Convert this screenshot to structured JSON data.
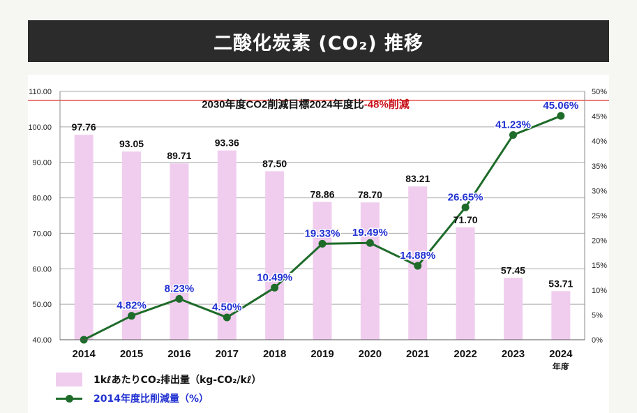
{
  "title": "二酸化炭素 (CO₂) 推移",
  "chart_data": {
    "type": "bar+line",
    "categories": [
      "2014",
      "2015",
      "2016",
      "2017",
      "2018",
      "2019",
      "2020",
      "2021",
      "2022",
      "2023",
      "2024"
    ],
    "x_unit": "年度",
    "left_axis": {
      "ylim": [
        40,
        110
      ],
      "ticks": [
        "40.00",
        "50.00",
        "60.00",
        "70.00",
        "80.00",
        "90.00",
        "100.00",
        "110.00"
      ]
    },
    "right_axis": {
      "ylim": [
        0,
        50
      ],
      "ticks": [
        "0%",
        "5%",
        "10%",
        "15%",
        "20%",
        "25%",
        "30%",
        "35%",
        "40%",
        "45%",
        "50%"
      ]
    },
    "series": [
      {
        "name": "1kℓあたりCO₂排出量（kg-CO₂/kℓ）",
        "kind": "bar",
        "axis": "left",
        "color": "#f0cdee",
        "values": [
          97.76,
          93.05,
          89.71,
          93.36,
          87.5,
          78.86,
          78.7,
          83.21,
          71.7,
          57.45,
          53.71
        ],
        "labels": [
          "97.76",
          "93.05",
          "89.71",
          "93.36",
          "87.50",
          "78.86",
          "78.70",
          "83.21",
          "71.70",
          "57.45",
          "53.71"
        ]
      },
      {
        "name": "2014年度比削減量（%）",
        "kind": "line",
        "axis": "right",
        "color": "#1e6b2a",
        "label_color": "#1f2fd1",
        "values": [
          0,
          4.82,
          8.23,
          4.5,
          10.49,
          19.33,
          19.49,
          14.88,
          26.65,
          41.23,
          45.06
        ],
        "labels": [
          "",
          "4.82%",
          "8.23%",
          "4.50%",
          "10.49%",
          "19.33%",
          "19.49%",
          "14.88%",
          "26.65%",
          "41.23%",
          "45.06%"
        ]
      }
    ],
    "target": {
      "value": 107.5,
      "axis": "left",
      "color": "#e0241b",
      "text_main": "2030年度CO2削減目標2024年度比",
      "text_emph": "-48%削減",
      "emph_color": "#c8101a"
    },
    "grid": true,
    "legend_position": "bottom-left"
  }
}
